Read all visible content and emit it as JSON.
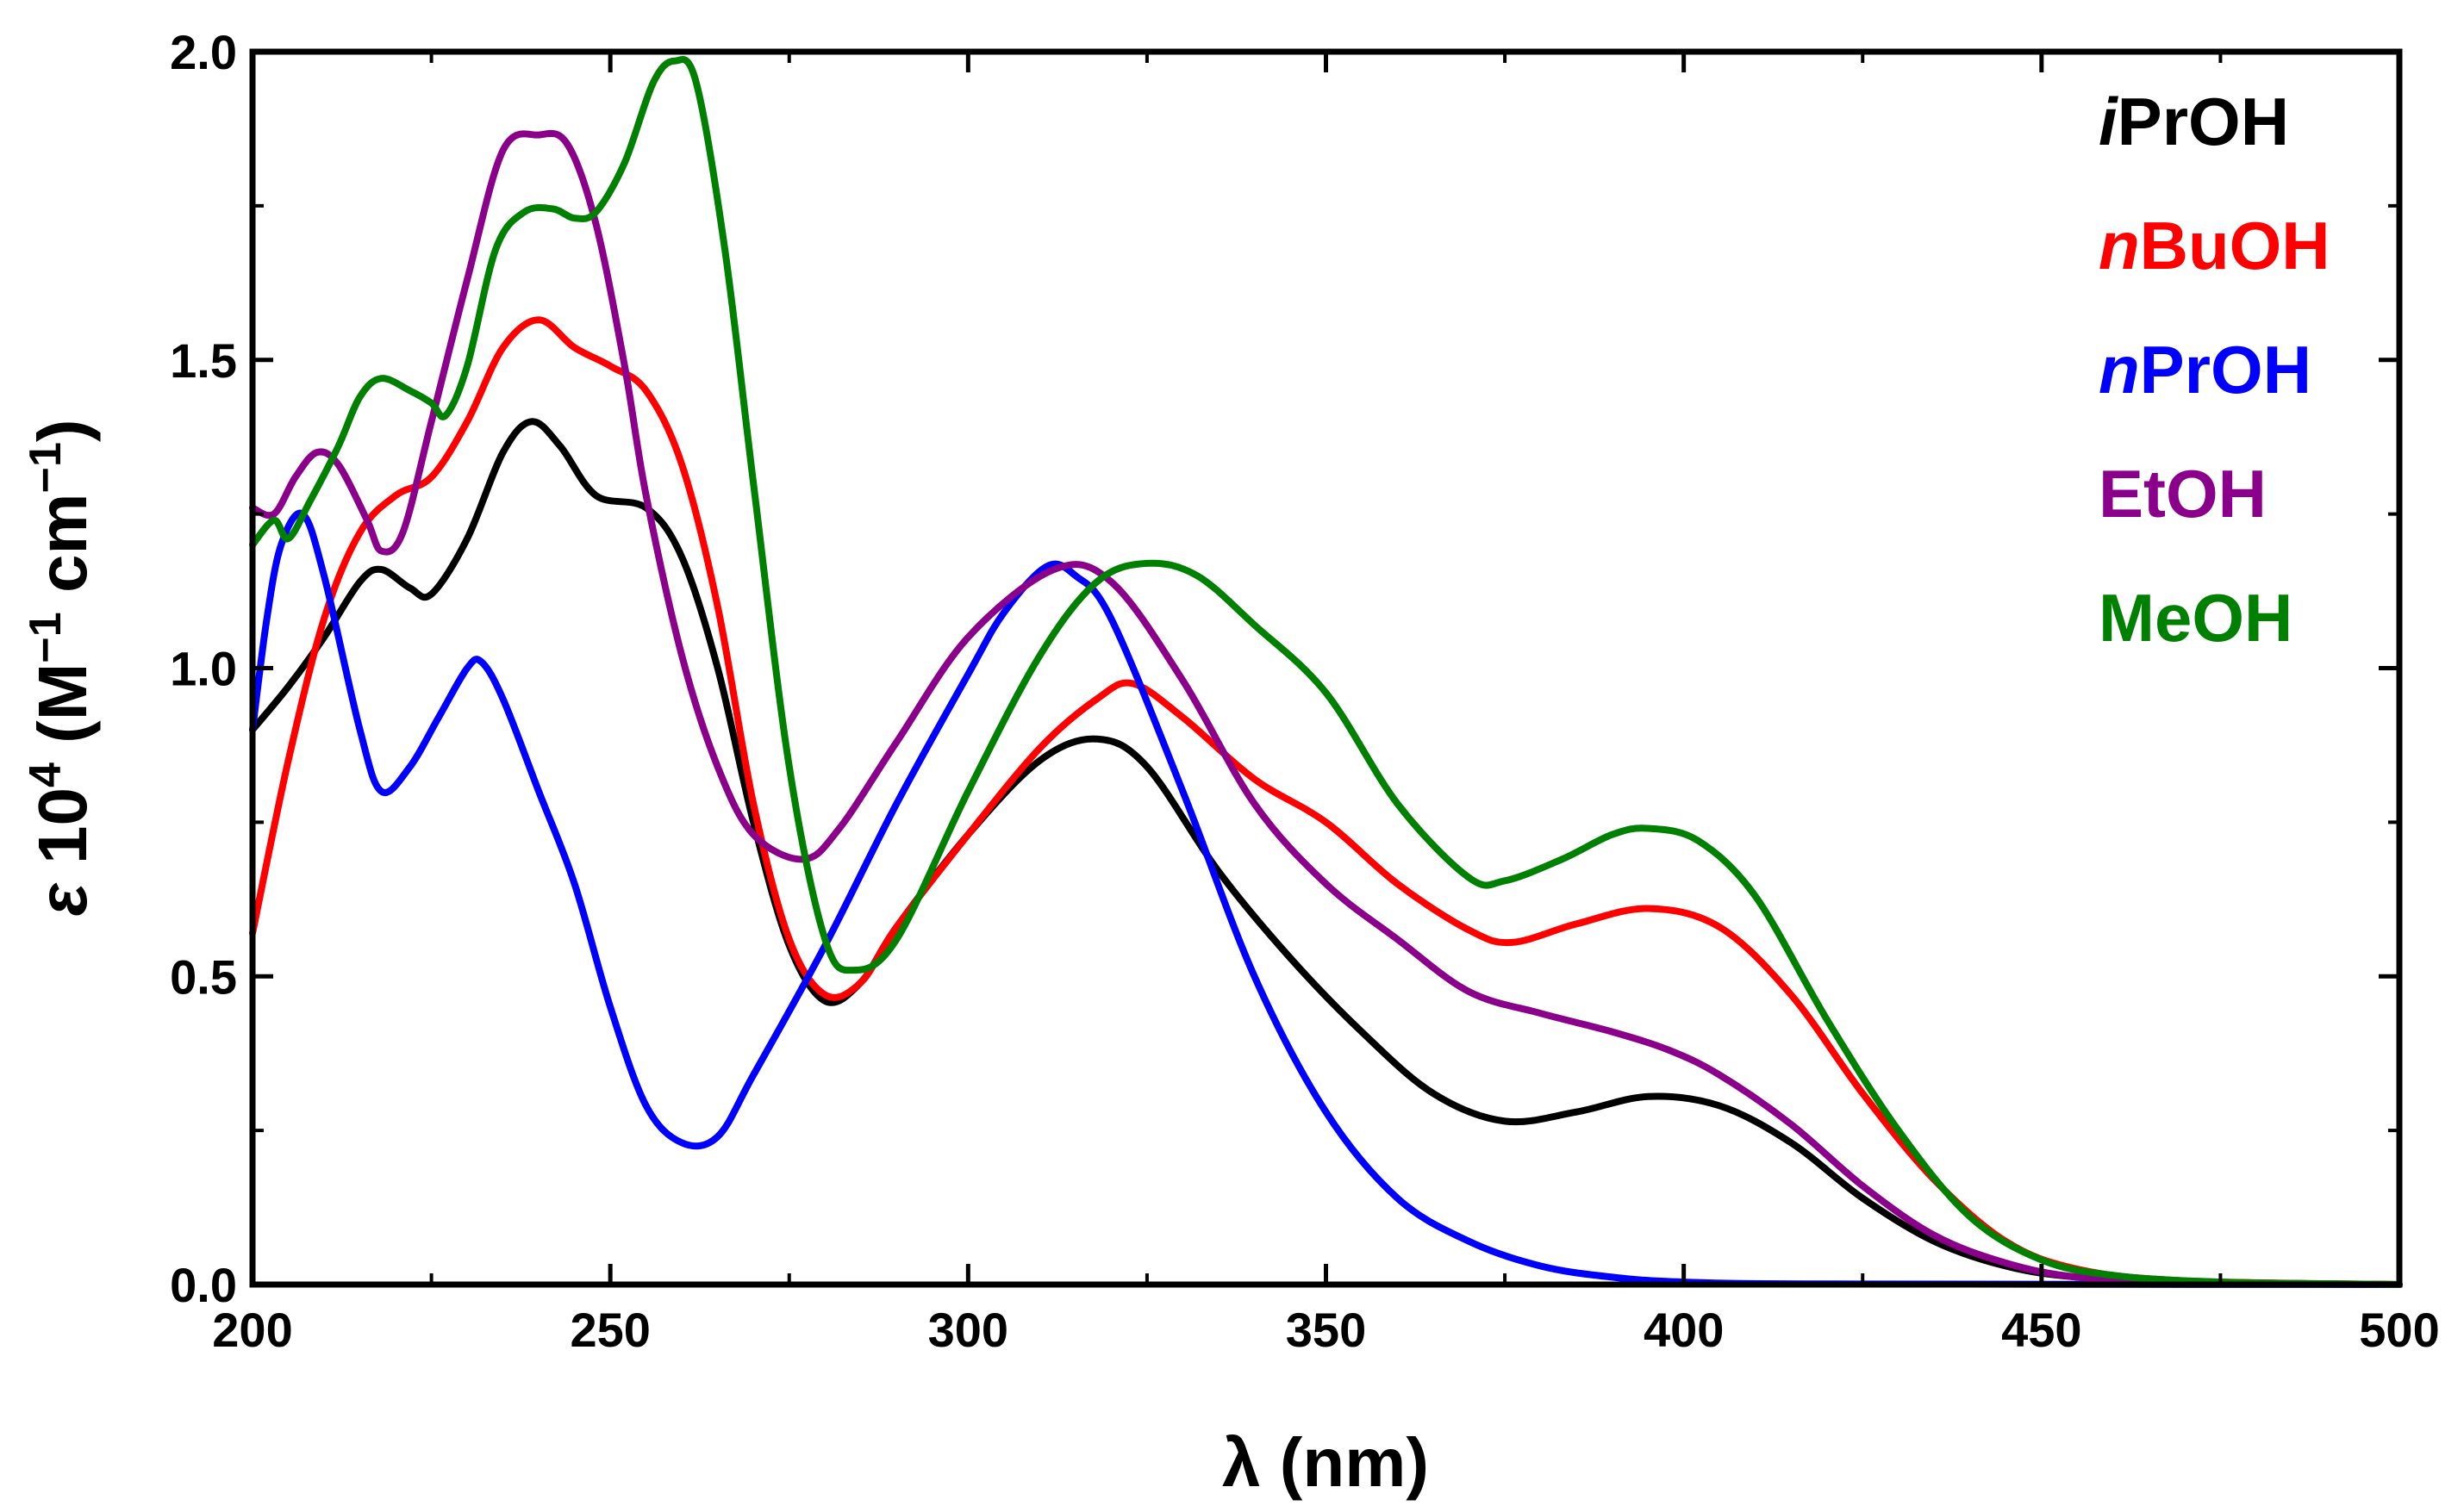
{
  "chart_data": {
    "type": "line",
    "title": "",
    "xlabel": "λ (nm)",
    "ylabel": {
      "symbol": "ε",
      "text": " 10",
      "exp": "4",
      "unit_open": " (M",
      "unit_exp1": "−1",
      "unit_mid": " cm",
      "unit_exp2": "−1",
      "unit_close": ")"
    },
    "xlim": [
      200,
      500
    ],
    "ylim": [
      0,
      2.0
    ],
    "xticks": [
      200,
      250,
      300,
      350,
      400,
      450,
      500
    ],
    "yticks": [
      0.0,
      0.5,
      1.0,
      1.5,
      2.0
    ],
    "ytick_labels": [
      "0.0",
      "0.5",
      "1.0",
      "1.5",
      "2.0"
    ],
    "xtick_labels": [
      "200",
      "250",
      "300",
      "350",
      "400",
      "450",
      "500"
    ],
    "legend_position": "top-right",
    "series": [
      {
        "name": "iPrOH",
        "prefix": "i",
        "rest": "PrOH",
        "color": "#000000",
        "points": [
          [
            200,
            0.9
          ],
          [
            205,
            0.97
          ],
          [
            210,
            1.05
          ],
          [
            215,
            1.14
          ],
          [
            218,
            1.16
          ],
          [
            222,
            1.13
          ],
          [
            225,
            1.12
          ],
          [
            230,
            1.21
          ],
          [
            235,
            1.35
          ],
          [
            239,
            1.4
          ],
          [
            243,
            1.36
          ],
          [
            248,
            1.28
          ],
          [
            255,
            1.26
          ],
          [
            260,
            1.18
          ],
          [
            265,
            1.0
          ],
          [
            270,
            0.75
          ],
          [
            275,
            0.55
          ],
          [
            280,
            0.46
          ],
          [
            285,
            0.49
          ],
          [
            290,
            0.58
          ],
          [
            300,
            0.73
          ],
          [
            310,
            0.85
          ],
          [
            318,
            0.885
          ],
          [
            325,
            0.84
          ],
          [
            335,
            0.67
          ],
          [
            345,
            0.53
          ],
          [
            355,
            0.41
          ],
          [
            365,
            0.31
          ],
          [
            375,
            0.265
          ],
          [
            385,
            0.28
          ],
          [
            395,
            0.305
          ],
          [
            405,
            0.29
          ],
          [
            415,
            0.23
          ],
          [
            425,
            0.14
          ],
          [
            435,
            0.07
          ],
          [
            445,
            0.03
          ],
          [
            455,
            0.012
          ],
          [
            470,
            0.004
          ],
          [
            500,
            0.0
          ]
        ]
      },
      {
        "name": "nBuOH",
        "prefix": "n",
        "rest": "BuOH",
        "color": "#ff0000",
        "points": [
          [
            200,
            0.57
          ],
          [
            205,
            0.85
          ],
          [
            210,
            1.08
          ],
          [
            215,
            1.22
          ],
          [
            220,
            1.28
          ],
          [
            225,
            1.31
          ],
          [
            230,
            1.4
          ],
          [
            235,
            1.52
          ],
          [
            240,
            1.565
          ],
          [
            245,
            1.52
          ],
          [
            250,
            1.49
          ],
          [
            255,
            1.45
          ],
          [
            260,
            1.33
          ],
          [
            265,
            1.1
          ],
          [
            270,
            0.78
          ],
          [
            275,
            0.56
          ],
          [
            280,
            0.47
          ],
          [
            285,
            0.49
          ],
          [
            290,
            0.58
          ],
          [
            300,
            0.73
          ],
          [
            310,
            0.87
          ],
          [
            318,
            0.95
          ],
          [
            323,
            0.975
          ],
          [
            330,
            0.92
          ],
          [
            340,
            0.82
          ],
          [
            350,
            0.75
          ],
          [
            360,
            0.65
          ],
          [
            370,
            0.575
          ],
          [
            376,
            0.555
          ],
          [
            385,
            0.585
          ],
          [
            395,
            0.61
          ],
          [
            405,
            0.58
          ],
          [
            415,
            0.47
          ],
          [
            425,
            0.31
          ],
          [
            435,
            0.17
          ],
          [
            445,
            0.07
          ],
          [
            455,
            0.025
          ],
          [
            470,
            0.006
          ],
          [
            500,
            0.0
          ]
        ]
      },
      {
        "name": "nPrOH",
        "prefix": "n",
        "rest": "PrOH",
        "color": "#0000ff",
        "points": [
          [
            200,
            0.9
          ],
          [
            202,
            1.08
          ],
          [
            204,
            1.2
          ],
          [
            207,
            1.25
          ],
          [
            210,
            1.15
          ],
          [
            215,
            0.9
          ],
          [
            218,
            0.8
          ],
          [
            222,
            0.84
          ],
          [
            226,
            0.92
          ],
          [
            230,
            1.0
          ],
          [
            232,
            1.01
          ],
          [
            235,
            0.95
          ],
          [
            240,
            0.8
          ],
          [
            245,
            0.65
          ],
          [
            250,
            0.45
          ],
          [
            255,
            0.29
          ],
          [
            260,
            0.23
          ],
          [
            265,
            0.24
          ],
          [
            270,
            0.34
          ],
          [
            280,
            0.55
          ],
          [
            290,
            0.78
          ],
          [
            300,
            0.99
          ],
          [
            305,
            1.09
          ],
          [
            311,
            1.165
          ],
          [
            315,
            1.15
          ],
          [
            320,
            1.08
          ],
          [
            330,
            0.8
          ],
          [
            340,
            0.5
          ],
          [
            350,
            0.28
          ],
          [
            360,
            0.14
          ],
          [
            370,
            0.07
          ],
          [
            380,
            0.03
          ],
          [
            390,
            0.012
          ],
          [
            400,
            0.004
          ],
          [
            420,
            0.001
          ],
          [
            500,
            0.0
          ]
        ]
      },
      {
        "name": "EtOH",
        "prefix": "",
        "rest": "EtOH",
        "color": "#8b008b",
        "points": [
          [
            200,
            1.26
          ],
          [
            203,
            1.25
          ],
          [
            206,
            1.31
          ],
          [
            209,
            1.35
          ],
          [
            212,
            1.33
          ],
          [
            216,
            1.24
          ],
          [
            218,
            1.19
          ],
          [
            221,
            1.22
          ],
          [
            225,
            1.4
          ],
          [
            230,
            1.63
          ],
          [
            235,
            1.84
          ],
          [
            240,
            1.865
          ],
          [
            244,
            1.85
          ],
          [
            248,
            1.72
          ],
          [
            252,
            1.49
          ],
          [
            255,
            1.28
          ],
          [
            260,
            1.02
          ],
          [
            265,
            0.84
          ],
          [
            270,
            0.73
          ],
          [
            277,
            0.69
          ],
          [
            282,
            0.74
          ],
          [
            290,
            0.88
          ],
          [
            300,
            1.05
          ],
          [
            312,
            1.16
          ],
          [
            320,
            1.14
          ],
          [
            330,
            0.98
          ],
          [
            340,
            0.78
          ],
          [
            350,
            0.65
          ],
          [
            360,
            0.56
          ],
          [
            370,
            0.475
          ],
          [
            380,
            0.44
          ],
          [
            390,
            0.41
          ],
          [
            398,
            0.38
          ],
          [
            405,
            0.34
          ],
          [
            415,
            0.26
          ],
          [
            425,
            0.16
          ],
          [
            435,
            0.08
          ],
          [
            445,
            0.035
          ],
          [
            455,
            0.012
          ],
          [
            470,
            0.004
          ],
          [
            500,
            0.0
          ]
        ]
      },
      {
        "name": "MeOH",
        "prefix": "",
        "rest": "MeOH",
        "color": "#008000",
        "points": [
          [
            200,
            1.2
          ],
          [
            203,
            1.24
          ],
          [
            205,
            1.21
          ],
          [
            208,
            1.27
          ],
          [
            212,
            1.36
          ],
          [
            215,
            1.44
          ],
          [
            218,
            1.47
          ],
          [
            222,
            1.45
          ],
          [
            225,
            1.43
          ],
          [
            227,
            1.41
          ],
          [
            230,
            1.49
          ],
          [
            234,
            1.68
          ],
          [
            238,
            1.74
          ],
          [
            242,
            1.745
          ],
          [
            245,
            1.73
          ],
          [
            248,
            1.74
          ],
          [
            252,
            1.82
          ],
          [
            256,
            1.95
          ],
          [
            259,
            1.985
          ],
          [
            262,
            1.95
          ],
          [
            266,
            1.68
          ],
          [
            270,
            1.3
          ],
          [
            275,
            0.84
          ],
          [
            280,
            0.56
          ],
          [
            284,
            0.51
          ],
          [
            290,
            0.56
          ],
          [
            300,
            0.8
          ],
          [
            310,
            1.02
          ],
          [
            318,
            1.14
          ],
          [
            325,
            1.17
          ],
          [
            332,
            1.15
          ],
          [
            340,
            1.07
          ],
          [
            350,
            0.96
          ],
          [
            360,
            0.78
          ],
          [
            370,
            0.66
          ],
          [
            375,
            0.655
          ],
          [
            383,
            0.69
          ],
          [
            390,
            0.73
          ],
          [
            395,
            0.74
          ],
          [
            402,
            0.72
          ],
          [
            410,
            0.63
          ],
          [
            420,
            0.43
          ],
          [
            430,
            0.25
          ],
          [
            440,
            0.11
          ],
          [
            450,
            0.04
          ],
          [
            460,
            0.015
          ],
          [
            475,
            0.004
          ],
          [
            500,
            0.0
          ]
        ]
      }
    ]
  }
}
